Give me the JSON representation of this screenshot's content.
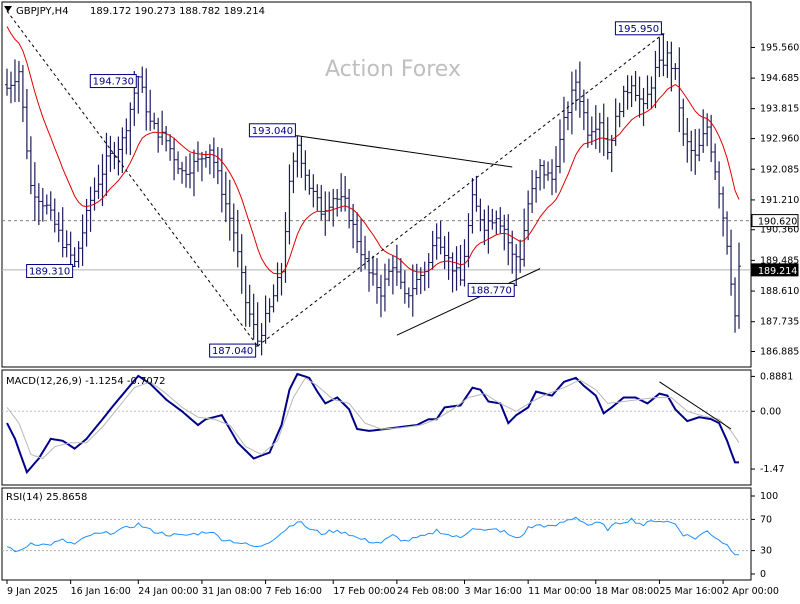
{
  "header": {
    "symbol": "GBPJPY,H4",
    "ohlc": "189.172 190.273 188.782 189.214"
  },
  "watermark": "Action Forex",
  "colors": {
    "bar": "#1c1c5c",
    "ma": "#e00000",
    "macd_main": "#00008b",
    "macd_signal": "#b8b8b8",
    "rsi": "#1e90ff",
    "label_border": "#000080",
    "frame": "#000000",
    "grid_dash": "#808080"
  },
  "chart_data": [
    {
      "type": "bar",
      "panel": "price",
      "ylim": [
        186.5,
        196.8
      ],
      "yticks": [
        "195.560",
        "194.685",
        "193.815",
        "192.960",
        "192.085",
        "191.210",
        "190.360",
        "189.485",
        "188.610",
        "187.735",
        "186.885"
      ],
      "ytick_values": [
        195.56,
        194.685,
        193.815,
        192.96,
        192.085,
        191.21,
        190.36,
        189.485,
        188.61,
        187.735,
        186.885
      ],
      "current_price": "189.214",
      "current_price_value": 189.214,
      "reference_level": "190.620",
      "reference_level_value": 190.62,
      "annotations": [
        {
          "text": "194.730",
          "value": 194.73,
          "bar": 33
        },
        {
          "text": "193.040",
          "value": 193.04,
          "bar": 73
        },
        {
          "text": "195.950",
          "value": 195.95,
          "bar": 165
        },
        {
          "text": "189.310",
          "value": 189.31,
          "bar": 17
        },
        {
          "text": "187.040",
          "value": 187.04,
          "bar": 63
        },
        {
          "text": "188.770",
          "value": 188.77,
          "bar": 128
        }
      ],
      "trendlines": [
        {
          "from": [
            0,
            196.6
          ],
          "to": [
            63,
            187.04
          ]
        },
        {
          "from": [
            63,
            187.04
          ],
          "to": [
            165,
            195.95
          ]
        },
        {
          "from": [
            73,
            193.04
          ],
          "to": [
            127,
            192.15
          ]
        },
        {
          "from": [
            98,
            187.35
          ],
          "to": [
            134,
            189.25
          ]
        }
      ],
      "moving_average": "red line",
      "xticks": [
        "9 Jan 2025",
        "16 Jan 16:00",
        "24 Jan 00:00",
        "31 Jan 08:00",
        "7 Feb 16:00",
        "17 Feb 00:00",
        "24 Feb 08:00",
        "3 Mar 16:00",
        "11 Mar 00:00",
        "18 Mar 08:00",
        "25 Mar 16:00",
        "2 Apr 00:00"
      ],
      "xtick_bars": [
        0,
        16,
        33,
        49,
        65,
        82,
        98,
        115,
        131,
        148,
        164,
        180
      ],
      "anchors": [
        [
          0,
          194.4
        ],
        [
          3,
          194.9
        ],
        [
          6,
          191.6
        ],
        [
          10,
          191.0
        ],
        [
          14,
          190.0
        ],
        [
          17,
          189.4
        ],
        [
          21,
          191.2
        ],
        [
          25,
          192.3
        ],
        [
          29,
          192.9
        ],
        [
          33,
          194.73
        ],
        [
          36,
          193.4
        ],
        [
          40,
          192.9
        ],
        [
          44,
          192.0
        ],
        [
          48,
          192.3
        ],
        [
          51,
          192.7
        ],
        [
          54,
          191.5
        ],
        [
          57,
          190.3
        ],
        [
          60,
          188.3
        ],
        [
          63,
          187.2
        ],
        [
          66,
          188.1
        ],
        [
          69,
          189.2
        ],
        [
          71,
          191.6
        ],
        [
          73,
          192.8
        ],
        [
          76,
          191.6
        ],
        [
          79,
          190.9
        ],
        [
          82,
          191.3
        ],
        [
          85,
          191.1
        ],
        [
          88,
          190.1
        ],
        [
          91,
          189.1
        ],
        [
          94,
          188.6
        ],
        [
          97,
          189.4
        ],
        [
          100,
          188.4
        ],
        [
          103,
          188.9
        ],
        [
          106,
          189.4
        ],
        [
          108,
          190.3
        ],
        [
          111,
          189.5
        ],
        [
          114,
          188.9
        ],
        [
          117,
          191.2
        ],
        [
          120,
          190.5
        ],
        [
          123,
          190.8
        ],
        [
          125,
          190.4
        ],
        [
          127,
          189.6
        ],
        [
          129,
          189.6
        ],
        [
          131,
          191.1
        ],
        [
          134,
          192.1
        ],
        [
          137,
          191.8
        ],
        [
          140,
          193.4
        ],
        [
          143,
          194.6
        ],
        [
          146,
          193.2
        ],
        [
          149,
          193.5
        ],
        [
          151,
          192.6
        ],
        [
          154,
          193.9
        ],
        [
          157,
          194.6
        ],
        [
          160,
          193.8
        ],
        [
          163,
          194.9
        ],
        [
          166,
          195.3
        ],
        [
          168,
          194.8
        ],
        [
          170,
          193.0
        ],
        [
          173,
          192.4
        ],
        [
          176,
          193.3
        ],
        [
          179,
          191.5
        ],
        [
          181,
          190.0
        ],
        [
          183,
          187.9
        ],
        [
          184,
          189.2
        ]
      ]
    },
    {
      "type": "line",
      "panel": "macd",
      "title": "MACD(12,26,9) -1.1254 -0.7072",
      "yticks": [
        "0.8881",
        "0.00",
        "-1.47"
      ],
      "ytick_values": [
        0.8881,
        0.0,
        -1.47
      ],
      "ylim": [
        -1.85,
        1.0
      ],
      "trendline": {
        "from": [
          164,
          0.75
        ],
        "to": [
          182,
          -0.45
        ]
      },
      "series": [
        {
          "key": "main",
          "values_anchor": [
            [
              0,
              -0.3
            ],
            [
              2,
              -0.7
            ],
            [
              5,
              -1.55
            ],
            [
              8,
              -1.2
            ],
            [
              11,
              -0.7
            ],
            [
              14,
              -0.75
            ],
            [
              17,
              -0.95
            ],
            [
              20,
              -0.7
            ],
            [
              24,
              -0.2
            ],
            [
              28,
              0.3
            ],
            [
              33,
              0.9
            ],
            [
              36,
              0.7
            ],
            [
              40,
              0.3
            ],
            [
              44,
              0.0
            ],
            [
              48,
              -0.35
            ],
            [
              50,
              -0.2
            ],
            [
              54,
              -0.1
            ],
            [
              58,
              -0.8
            ],
            [
              62,
              -1.2
            ],
            [
              66,
              -1.05
            ],
            [
              69,
              -0.35
            ],
            [
              71,
              0.55
            ],
            [
              73,
              0.95
            ],
            [
              76,
              0.85
            ],
            [
              78,
              0.5
            ],
            [
              80,
              0.2
            ],
            [
              83,
              0.35
            ],
            [
              86,
              0.05
            ],
            [
              88,
              -0.45
            ],
            [
              91,
              -0.5
            ],
            [
              95,
              -0.45
            ],
            [
              99,
              -0.4
            ],
            [
              103,
              -0.35
            ],
            [
              106,
              -0.2
            ],
            [
              108,
              -0.2
            ],
            [
              110,
              0.1
            ],
            [
              114,
              0.15
            ],
            [
              117,
              0.6
            ],
            [
              119,
              0.55
            ],
            [
              121,
              0.25
            ],
            [
              124,
              0.2
            ],
            [
              126,
              -0.3
            ],
            [
              128,
              -0.1
            ],
            [
              131,
              0.1
            ],
            [
              133,
              0.5
            ],
            [
              137,
              0.4
            ],
            [
              140,
              0.75
            ],
            [
              143,
              0.85
            ],
            [
              145,
              0.65
            ],
            [
              148,
              0.4
            ],
            [
              150,
              -0.05
            ],
            [
              152,
              0.1
            ],
            [
              155,
              0.35
            ],
            [
              158,
              0.35
            ],
            [
              161,
              0.2
            ],
            [
              164,
              0.45
            ],
            [
              166,
              0.4
            ],
            [
              168,
              0.05
            ],
            [
              171,
              -0.25
            ],
            [
              174,
              -0.15
            ],
            [
              177,
              -0.2
            ],
            [
              179,
              -0.3
            ],
            [
              181,
              -0.75
            ],
            [
              183,
              -1.3
            ]
          ]
        },
        {
          "key": "signal",
          "values_anchor": [
            [
              0,
              0.1
            ],
            [
              3,
              -0.3
            ],
            [
              6,
              -1.1
            ],
            [
              9,
              -1.2
            ],
            [
              12,
              -0.9
            ],
            [
              16,
              -0.8
            ],
            [
              20,
              -0.8
            ],
            [
              24,
              -0.4
            ],
            [
              28,
              0.1
            ],
            [
              32,
              0.6
            ],
            [
              36,
              0.75
            ],
            [
              40,
              0.45
            ],
            [
              44,
              0.1
            ],
            [
              48,
              -0.15
            ],
            [
              52,
              -0.2
            ],
            [
              56,
              -0.35
            ],
            [
              60,
              -0.9
            ],
            [
              64,
              -1.1
            ],
            [
              68,
              -0.75
            ],
            [
              72,
              0.35
            ],
            [
              75,
              0.85
            ],
            [
              78,
              0.65
            ],
            [
              82,
              0.3
            ],
            [
              86,
              0.2
            ],
            [
              90,
              -0.3
            ],
            [
              94,
              -0.45
            ],
            [
              99,
              -0.42
            ],
            [
              104,
              -0.35
            ],
            [
              108,
              -0.2
            ],
            [
              112,
              0.05
            ],
            [
              116,
              0.35
            ],
            [
              120,
              0.45
            ],
            [
              124,
              0.2
            ],
            [
              128,
              0.0
            ],
            [
              132,
              0.25
            ],
            [
              136,
              0.45
            ],
            [
              140,
              0.6
            ],
            [
              144,
              0.8
            ],
            [
              148,
              0.55
            ],
            [
              151,
              0.2
            ],
            [
              155,
              0.25
            ],
            [
              159,
              0.3
            ],
            [
              163,
              0.35
            ],
            [
              167,
              0.35
            ],
            [
              171,
              0.0
            ],
            [
              175,
              -0.12
            ],
            [
              179,
              -0.2
            ],
            [
              182,
              -0.5
            ],
            [
              184,
              -0.8
            ]
          ]
        }
      ]
    },
    {
      "type": "line",
      "panel": "rsi",
      "title": "RSI(14) 25.8658",
      "yticks": [
        "100",
        "70",
        "30",
        "0"
      ],
      "ytick_values": [
        100,
        70,
        30,
        0
      ],
      "ylim": [
        0,
        100
      ],
      "series": [
        {
          "key": "rsi",
          "values_anchor": [
            [
              0,
              35
            ],
            [
              3,
              28
            ],
            [
              6,
              40
            ],
            [
              10,
              37
            ],
            [
              14,
              43
            ],
            [
              17,
              38
            ],
            [
              21,
              50
            ],
            [
              25,
              52
            ],
            [
              29,
              57
            ],
            [
              33,
              64
            ],
            [
              36,
              56
            ],
            [
              40,
              51
            ],
            [
              44,
              49
            ],
            [
              48,
              52
            ],
            [
              51,
              55
            ],
            [
              54,
              45
            ],
            [
              57,
              42
            ],
            [
              60,
              38
            ],
            [
              63,
              34
            ],
            [
              66,
              42
            ],
            [
              69,
              53
            ],
            [
              71,
              61
            ],
            [
              73,
              68
            ],
            [
              76,
              58
            ],
            [
              79,
              52
            ],
            [
              82,
              55
            ],
            [
              85,
              54
            ],
            [
              88,
              46
            ],
            [
              91,
              42
            ],
            [
              94,
              40
            ],
            [
              97,
              49
            ],
            [
              100,
              42
            ],
            [
              103,
              46
            ],
            [
              106,
              50
            ],
            [
              108,
              56
            ],
            [
              111,
              50
            ],
            [
              114,
              46
            ],
            [
              117,
              60
            ],
            [
              120,
              55
            ],
            [
              123,
              57
            ],
            [
              125,
              54
            ],
            [
              127,
              47
            ],
            [
              129,
              47
            ],
            [
              131,
              59
            ],
            [
              134,
              63
            ],
            [
              137,
              60
            ],
            [
              140,
              67
            ],
            [
              143,
              73
            ],
            [
              146,
              63
            ],
            [
              149,
              65
            ],
            [
              151,
              58
            ],
            [
              154,
              66
            ],
            [
              157,
              70
            ],
            [
              160,
              63
            ],
            [
              163,
              69
            ],
            [
              166,
              67
            ],
            [
              168,
              64
            ],
            [
              170,
              51
            ],
            [
              173,
              46
            ],
            [
              176,
              55
            ],
            [
              179,
              44
            ],
            [
              181,
              37
            ],
            [
              183,
              27
            ],
            [
              184,
              26
            ]
          ]
        }
      ]
    }
  ]
}
